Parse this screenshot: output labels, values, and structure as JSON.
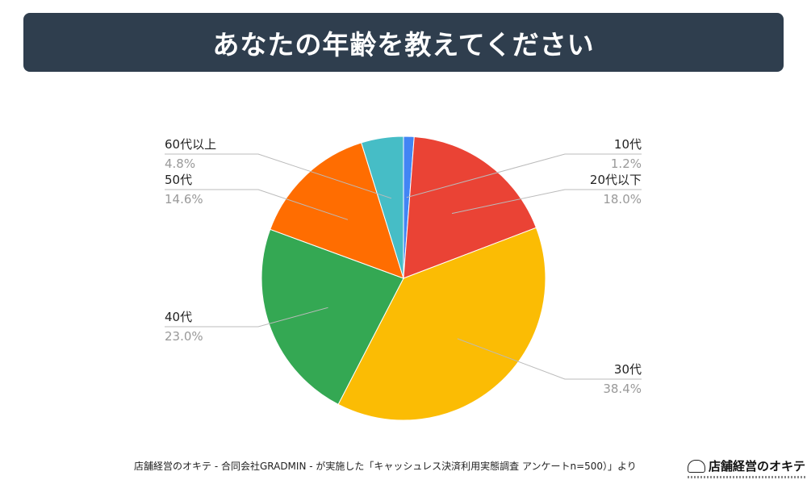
{
  "header": {
    "title": "あなたの年齢を教えてください"
  },
  "chart_data": {
    "type": "pie",
    "title": "あなたの年齢を教えてください",
    "start_angle_deg": 0,
    "direction": "clockwise",
    "slices": [
      {
        "label": "10代",
        "value": 1.2,
        "display": "1.2%",
        "color": "#4285f4",
        "side": "right"
      },
      {
        "label": "20代以下",
        "value": 18.0,
        "display": "18.0%",
        "color": "#ea4335",
        "side": "right"
      },
      {
        "label": "30代",
        "value": 38.4,
        "display": "38.4%",
        "color": "#fbbc04",
        "side": "right"
      },
      {
        "label": "40代",
        "value": 23.0,
        "display": "23.0%",
        "color": "#34a853",
        "side": "left"
      },
      {
        "label": "50代",
        "value": 14.6,
        "display": "14.6%",
        "color": "#ff6d01",
        "side": "left"
      },
      {
        "label": "60代以上",
        "value": 4.8,
        "display": "4.8%",
        "color": "#46bdc6",
        "side": "left"
      }
    ]
  },
  "footer": {
    "source": "店舗経営のオキテ - 合同会社GRADMIN - が実施した「キャッシュレス決済利用実態調査 アンケートn=500）」より"
  },
  "logo": {
    "text": "店舗経営のオキテ"
  }
}
